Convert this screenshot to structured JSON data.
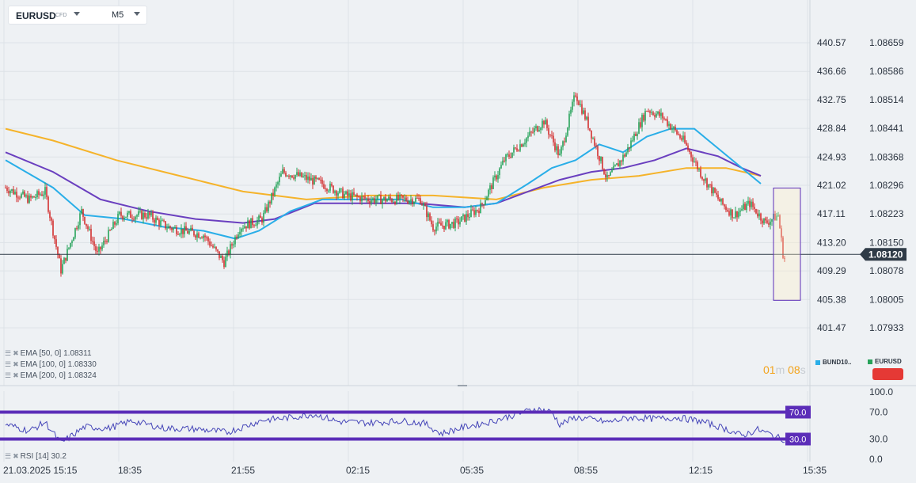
{
  "header": {
    "symbol": "EURUSD",
    "badge": "CFD",
    "timeframe": "M5"
  },
  "legends": {
    "ema50": "EMA [50, 0] 1.08311",
    "ema100": "EMA [100, 0] 1.08330",
    "ema200": "EMA [200, 0] 1.08324",
    "rsi": "RSI [14] 30.2"
  },
  "countdown": {
    "minutes": "01",
    "m": "m",
    "seconds": "08",
    "s": "s"
  },
  "mini_legend": {
    "left": "BUND10..",
    "right": "EURUSD"
  },
  "colors": {
    "bull": "#26a25a",
    "bear": "#d32f2f",
    "ema50": "#29aee8",
    "ema100": "#6a3fbf",
    "ema200": "#f5b32a",
    "rsi_line": "#4545b8",
    "rsi_band": "#5b2db8",
    "price_tag": "#2f3b47"
  },
  "chart_data": {
    "type": "candlestick",
    "instrument": "EURUSD",
    "current_price": 1.0812,
    "y_axis_left_ticks": [
      440.57,
      436.66,
      432.75,
      428.84,
      424.93,
      421.02,
      417.11,
      413.2,
      409.29,
      405.38,
      401.47
    ],
    "y_axis_right_ticks": [
      1.08659,
      1.08586,
      1.08514,
      1.08441,
      1.08368,
      1.08296,
      1.08223,
      1.0815,
      1.08078,
      1.08005,
      1.07933
    ],
    "x_ticks": [
      "21.03.2025 15:15",
      "18:35",
      "21:55",
      "02:15",
      "05:35",
      "08:55",
      "12:15",
      "15:35"
    ],
    "anchors": [
      {
        "t": 0,
        "p": 1.0829
      },
      {
        "t": 15,
        "p": 1.0826
      },
      {
        "t": 25,
        "p": 1.0828
      },
      {
        "t": 35,
        "p": 1.0808
      },
      {
        "t": 48,
        "p": 1.0823
      },
      {
        "t": 58,
        "p": 1.0812
      },
      {
        "t": 72,
        "p": 1.0822
      },
      {
        "t": 90,
        "p": 1.0822
      },
      {
        "t": 102,
        "p": 1.0819
      },
      {
        "t": 112,
        "p": 1.0818
      },
      {
        "t": 125,
        "p": 1.0817
      },
      {
        "t": 138,
        "p": 1.081
      },
      {
        "t": 148,
        "p": 1.0819
      },
      {
        "t": 162,
        "p": 1.0821
      },
      {
        "t": 175,
        "p": 1.0833
      },
      {
        "t": 185,
        "p": 1.0832
      },
      {
        "t": 200,
        "p": 1.083
      },
      {
        "t": 215,
        "p": 1.0827
      },
      {
        "t": 230,
        "p": 1.0826
      },
      {
        "t": 248,
        "p": 1.0826
      },
      {
        "t": 262,
        "p": 1.0826
      },
      {
        "t": 270,
        "p": 1.0819
      },
      {
        "t": 285,
        "p": 1.082
      },
      {
        "t": 300,
        "p": 1.0824
      },
      {
        "t": 315,
        "p": 1.0836
      },
      {
        "t": 330,
        "p": 1.0842
      },
      {
        "t": 340,
        "p": 1.0846
      },
      {
        "t": 350,
        "p": 1.0837
      },
      {
        "t": 360,
        "p": 1.0853
      },
      {
        "t": 368,
        "p": 1.0845
      },
      {
        "t": 380,
        "p": 1.0831
      },
      {
        "t": 392,
        "p": 1.0838
      },
      {
        "t": 405,
        "p": 1.0849
      },
      {
        "t": 415,
        "p": 1.0847
      },
      {
        "t": 428,
        "p": 1.0841
      },
      {
        "t": 440,
        "p": 1.0832
      },
      {
        "t": 452,
        "p": 1.0825
      },
      {
        "t": 460,
        "p": 1.0822
      },
      {
        "t": 470,
        "p": 1.0825
      },
      {
        "t": 480,
        "p": 1.082
      },
      {
        "t": 488,
        "p": 1.0822
      },
      {
        "t": 492,
        "p": 1.0809
      }
    ],
    "ema50_path": [
      [
        0,
        1.0836
      ],
      [
        30,
        1.0829
      ],
      [
        50,
        1.0822
      ],
      [
        75,
        1.0821
      ],
      [
        100,
        1.0819
      ],
      [
        125,
        1.0818
      ],
      [
        145,
        1.0816
      ],
      [
        160,
        1.0818
      ],
      [
        180,
        1.0823
      ],
      [
        200,
        1.0826
      ],
      [
        230,
        1.0826
      ],
      [
        250,
        1.0826
      ],
      [
        270,
        1.0824
      ],
      [
        290,
        1.0824
      ],
      [
        310,
        1.0825
      ],
      [
        330,
        1.083
      ],
      [
        345,
        1.0834
      ],
      [
        360,
        1.0836
      ],
      [
        375,
        1.084
      ],
      [
        390,
        1.0838
      ],
      [
        405,
        1.0842
      ],
      [
        420,
        1.0844
      ],
      [
        435,
        1.0844
      ],
      [
        450,
        1.0839
      ],
      [
        465,
        1.0834
      ],
      [
        477,
        1.083
      ]
    ],
    "ema100_path": [
      [
        0,
        1.0838
      ],
      [
        30,
        1.0833
      ],
      [
        60,
        1.0826
      ],
      [
        90,
        1.0823
      ],
      [
        120,
        1.0821
      ],
      [
        150,
        1.082
      ],
      [
        170,
        1.0821
      ],
      [
        195,
        1.0825
      ],
      [
        225,
        1.0825
      ],
      [
        260,
        1.0825
      ],
      [
        290,
        1.0824
      ],
      [
        310,
        1.0825
      ],
      [
        330,
        1.0828
      ],
      [
        350,
        1.0831
      ],
      [
        370,
        1.0833
      ],
      [
        390,
        1.0834
      ],
      [
        410,
        1.0836
      ],
      [
        430,
        1.0839
      ],
      [
        450,
        1.0837
      ],
      [
        465,
        1.0834
      ],
      [
        477,
        1.0832
      ]
    ],
    "ema200_path": [
      [
        0,
        1.0844
      ],
      [
        30,
        1.0841
      ],
      [
        70,
        1.0836
      ],
      [
        110,
        1.0832
      ],
      [
        150,
        1.0828
      ],
      [
        190,
        1.0826
      ],
      [
        230,
        1.0827
      ],
      [
        270,
        1.0827
      ],
      [
        310,
        1.0826
      ],
      [
        340,
        1.0829
      ],
      [
        370,
        1.0831
      ],
      [
        400,
        1.0832
      ],
      [
        430,
        1.0834
      ],
      [
        455,
        1.0834
      ],
      [
        477,
        1.0832
      ]
    ],
    "rsi": {
      "ylim": [
        0,
        100
      ],
      "ticks": [
        100.0,
        70.0,
        30.0,
        0.0
      ],
      "levels": [
        70.0,
        30.0
      ],
      "last": 30.2,
      "anchors": [
        [
          0,
          52
        ],
        [
          15,
          42
        ],
        [
          25,
          55
        ],
        [
          35,
          24
        ],
        [
          50,
          48
        ],
        [
          65,
          46
        ],
        [
          80,
          57
        ],
        [
          100,
          46
        ],
        [
          120,
          45
        ],
        [
          140,
          40
        ],
        [
          150,
          48
        ],
        [
          162,
          58
        ],
        [
          180,
          62
        ],
        [
          195,
          67
        ],
        [
          210,
          56
        ],
        [
          230,
          54
        ],
        [
          250,
          57
        ],
        [
          265,
          53
        ],
        [
          275,
          38
        ],
        [
          290,
          48
        ],
        [
          305,
          55
        ],
        [
          320,
          65
        ],
        [
          335,
          75
        ],
        [
          345,
          70
        ],
        [
          350,
          52
        ],
        [
          360,
          62
        ],
        [
          368,
          60
        ],
        [
          380,
          55
        ],
        [
          395,
          62
        ],
        [
          410,
          60
        ],
        [
          425,
          62
        ],
        [
          440,
          56
        ],
        [
          455,
          45
        ],
        [
          465,
          35
        ],
        [
          475,
          44
        ],
        [
          482,
          38
        ],
        [
          490,
          30
        ]
      ]
    }
  }
}
